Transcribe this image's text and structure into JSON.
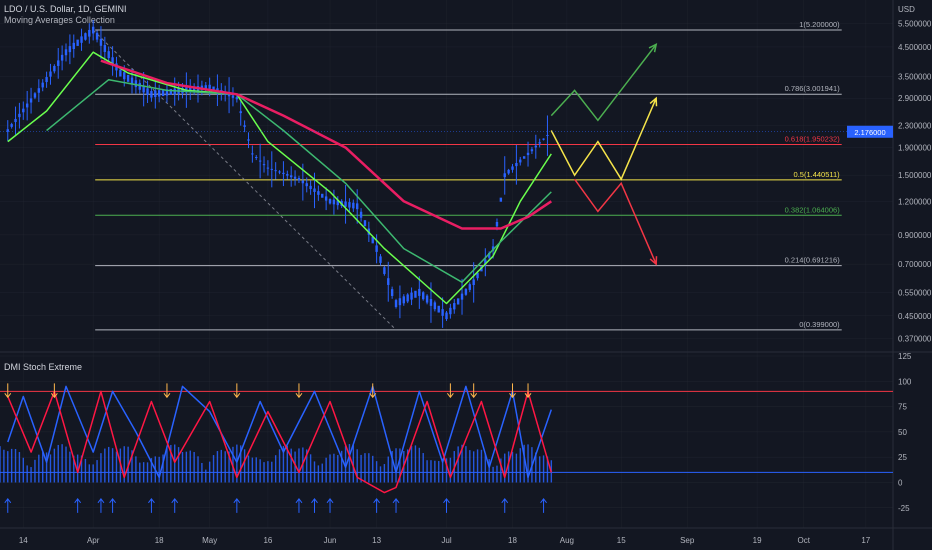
{
  "header": {
    "symbol_line": "LDO / U.S. Dollar, 1D, GEMINI",
    "indicator_line": "Moving Averages Collection"
  },
  "lower_pane": {
    "title": "DMI Stoch Extreme"
  },
  "price_axis": {
    "currency": "USD",
    "ticks": [
      "5.500000",
      "4.500000",
      "3.500000",
      "2.900000",
      "2.300000",
      "1.900000",
      "1.500000",
      "1.200000",
      "0.900000",
      "0.700000",
      "0.550000",
      "0.450000",
      "0.370000"
    ],
    "current_price_label": "2.176000"
  },
  "osc_axis": {
    "ticks": [
      "125",
      "100",
      "75",
      "50",
      "25",
      "0",
      "-25"
    ]
  },
  "time_axis": {
    "ticks": [
      "14",
      "Apr",
      "18",
      "May",
      "16",
      "Jun",
      "13",
      "Jul",
      "18",
      "Aug",
      "15",
      "Sep",
      "19",
      "Oct",
      "17"
    ]
  },
  "fib_levels": [
    {
      "label": "1(5.200000)",
      "value": 5.2,
      "color": "#b2b5be"
    },
    {
      "label": "0.786(3.001941)",
      "value": 3.001941,
      "color": "#b2b5be"
    },
    {
      "label": "0.618(1.950232)",
      "value": 1.950232,
      "color": "#f23645"
    },
    {
      "label": "0.5(1.440511)",
      "value": 1.440511,
      "color": "#f5e44a"
    },
    {
      "label": "0.382(1.064006)",
      "value": 1.064006,
      "color": "#4caf50"
    },
    {
      "label": "0.214(0.691216)",
      "value": 0.691216,
      "color": "#b2b5be"
    },
    {
      "label": "0(0.399000)",
      "value": 0.399,
      "color": "#b2b5be"
    }
  ],
  "colors": {
    "background": "#131722",
    "grid": "#2a2e39",
    "candle": "#2962ff",
    "ma_fast": "#6aff4d",
    "ma_mid": "#3db870",
    "ma_slow": "#e91e63",
    "stoch_blue": "#2962ff",
    "stoch_red": "#ff1744",
    "scenario_up": "#4caf50",
    "scenario_mid": "#f5e44a",
    "scenario_down": "#f23645"
  },
  "chart_data": [
    {
      "type": "line",
      "title": "LDO / U.S. Dollar, 1D, GEMINI",
      "scale": "log",
      "y_range": [
        0.33,
        6.5
      ],
      "x_range": [
        "Mar 8",
        "Oct 24"
      ],
      "grid": true,
      "price_points": [
        [
          "Mar 10",
          2.2
        ],
        [
          "Mar 18",
          3.1
        ],
        [
          "Mar 25",
          4.3
        ],
        [
          "Apr 1",
          5.2
        ],
        [
          "Apr 8",
          3.6
        ],
        [
          "Apr 16",
          3.0
        ],
        [
          "Apr 24",
          3.1
        ],
        [
          "May 1",
          3.2
        ],
        [
          "May 8",
          2.9
        ],
        [
          "May 12",
          1.8
        ],
        [
          "May 16",
          1.6
        ],
        [
          "May 24",
          1.45
        ],
        [
          "Jun 1",
          1.2
        ],
        [
          "Jun 8",
          1.15
        ],
        [
          "Jun 13",
          0.8
        ],
        [
          "Jun 18",
          0.5
        ],
        [
          "Jun 24",
          0.55
        ],
        [
          "Jul 1",
          0.45
        ],
        [
          "Jul 8",
          0.6
        ],
        [
          "Jul 13",
          0.8
        ],
        [
          "Jul 16",
          1.5
        ],
        [
          "Jul 22",
          1.8
        ],
        [
          "Jul 28",
          2.176
        ]
      ],
      "series": [
        {
          "name": "",
          "color": "#6aff4d",
          "points": [
            [
              "Mar 10",
              2.0
            ],
            [
              "Mar 20",
              2.6
            ],
            [
              "Apr 1",
              4.3
            ],
            [
              "Apr 10",
              3.6
            ],
            [
              "Apr 25",
              3.1
            ],
            [
              "May 8",
              3.0
            ],
            [
              "May 16",
              2.0
            ],
            [
              "Jun 1",
              1.3
            ],
            [
              "Jun 15",
              0.8
            ],
            [
              "Jul 1",
              0.5
            ],
            [
              "Jul 13",
              0.75
            ],
            [
              "Jul 20",
              1.2
            ],
            [
              "Jul 28",
              1.8
            ]
          ]
        },
        {
          "name": "",
          "color": "#3db870",
          "points": [
            [
              "Mar 20",
              2.2
            ],
            [
              "Apr 5",
              3.4
            ],
            [
              "Apr 20",
              3.1
            ],
            [
              "May 8",
              3.0
            ],
            [
              "May 20",
              2.2
            ],
            [
              "Jun 5",
              1.4
            ],
            [
              "Jun 20",
              0.8
            ],
            [
              "Jul 5",
              0.6
            ],
            [
              "Jul 15",
              0.85
            ],
            [
              "Jul 28",
              1.3
            ]
          ]
        },
        {
          "name": "",
          "color": "#e91e63",
          "points": [
            [
              "Apr 3",
              4.0
            ],
            [
              "Apr 20",
              3.3
            ],
            [
              "May 8",
              3.0
            ],
            [
              "May 20",
              2.5
            ],
            [
              "Jun 5",
              1.9
            ],
            [
              "Jun 20",
              1.2
            ],
            [
              "Jul 5",
              0.95
            ],
            [
              "Jul 15",
              0.95
            ],
            [
              "Jul 22",
              1.05
            ],
            [
              "Jul 28",
              1.2
            ]
          ]
        }
      ],
      "scenarios": [
        {
          "name": "",
          "color": "#4caf50",
          "points": [
            [
              "Jul 28",
              2.5
            ],
            [
              "Aug 3",
              3.1
            ],
            [
              "Aug 9",
              2.4
            ],
            [
              "Aug 24",
              4.6
            ]
          ]
        },
        {
          "name": "",
          "color": "#f5e44a",
          "points": [
            [
              "Jul 28",
              2.2
            ],
            [
              "Aug 3",
              1.5
            ],
            [
              "Aug 9",
              2.0
            ],
            [
              "Aug 15",
              1.45
            ],
            [
              "Aug 24",
              2.9
            ]
          ]
        },
        {
          "name": "",
          "color": "#f23645",
          "points": [
            [
              "Aug 3",
              1.45
            ],
            [
              "Aug 9",
              1.1
            ],
            [
              "Aug 15",
              1.4
            ],
            [
              "Aug 24",
              0.7
            ]
          ]
        }
      ]
    },
    {
      "type": "line",
      "title": "DMI Stoch Extreme",
      "y_range": [
        -45,
        125
      ],
      "levels": [
        90,
        10
      ],
      "series": [
        {
          "name": "",
          "color": "#2962ff",
          "points": [
            [
              "Mar 10",
              40
            ],
            [
              "Mar 14",
              85
            ],
            [
              "Mar 20",
              20
            ],
            [
              "Mar 25",
              95
            ],
            [
              "Apr 1",
              30
            ],
            [
              "Apr 6",
              90
            ],
            [
              "Apr 12",
              50
            ],
            [
              "Apr 18",
              5
            ],
            [
              "Apr 24",
              95
            ],
            [
              "May 1",
              70
            ],
            [
              "May 8",
              20
            ],
            [
              "May 14",
              80
            ],
            [
              "May 20",
              30
            ],
            [
              "May 28",
              90
            ],
            [
              "Jun 5",
              15
            ],
            [
              "Jun 12",
              95
            ],
            [
              "Jun 18",
              10
            ],
            [
              "Jun 24",
              90
            ],
            [
              "Jun 30",
              20
            ],
            [
              "Jul 6",
              95
            ],
            [
              "Jul 12",
              15
            ],
            [
              "Jul 18",
              90
            ],
            [
              "Jul 22",
              5
            ],
            [
              "Jul 28",
              72
            ]
          ]
        },
        {
          "name": "",
          "color": "#ff1744",
          "points": [
            [
              "Mar 10",
              85
            ],
            [
              "Mar 16",
              30
            ],
            [
              "Mar 22",
              90
            ],
            [
              "Mar 28",
              10
            ],
            [
              "Apr 3",
              90
            ],
            [
              "Apr 9",
              5
            ],
            [
              "Apr 16",
              80
            ],
            [
              "Apr 22",
              20
            ],
            [
              "May 1",
              80
            ],
            [
              "May 8",
              5
            ],
            [
              "May 16",
              70
            ],
            [
              "May 24",
              10
            ],
            [
              "Jun 1",
              80
            ],
            [
              "Jun 8",
              5
            ],
            [
              "Jun 15",
              -10
            ],
            [
              "Jun 18",
              -5
            ],
            [
              "Jun 26",
              80
            ],
            [
              "Jul 2",
              5
            ],
            [
              "Jul 10",
              80
            ],
            [
              "Jul 16",
              5
            ],
            [
              "Jul 22",
              90
            ],
            [
              "Jul 28",
              10
            ]
          ]
        }
      ]
    }
  ]
}
